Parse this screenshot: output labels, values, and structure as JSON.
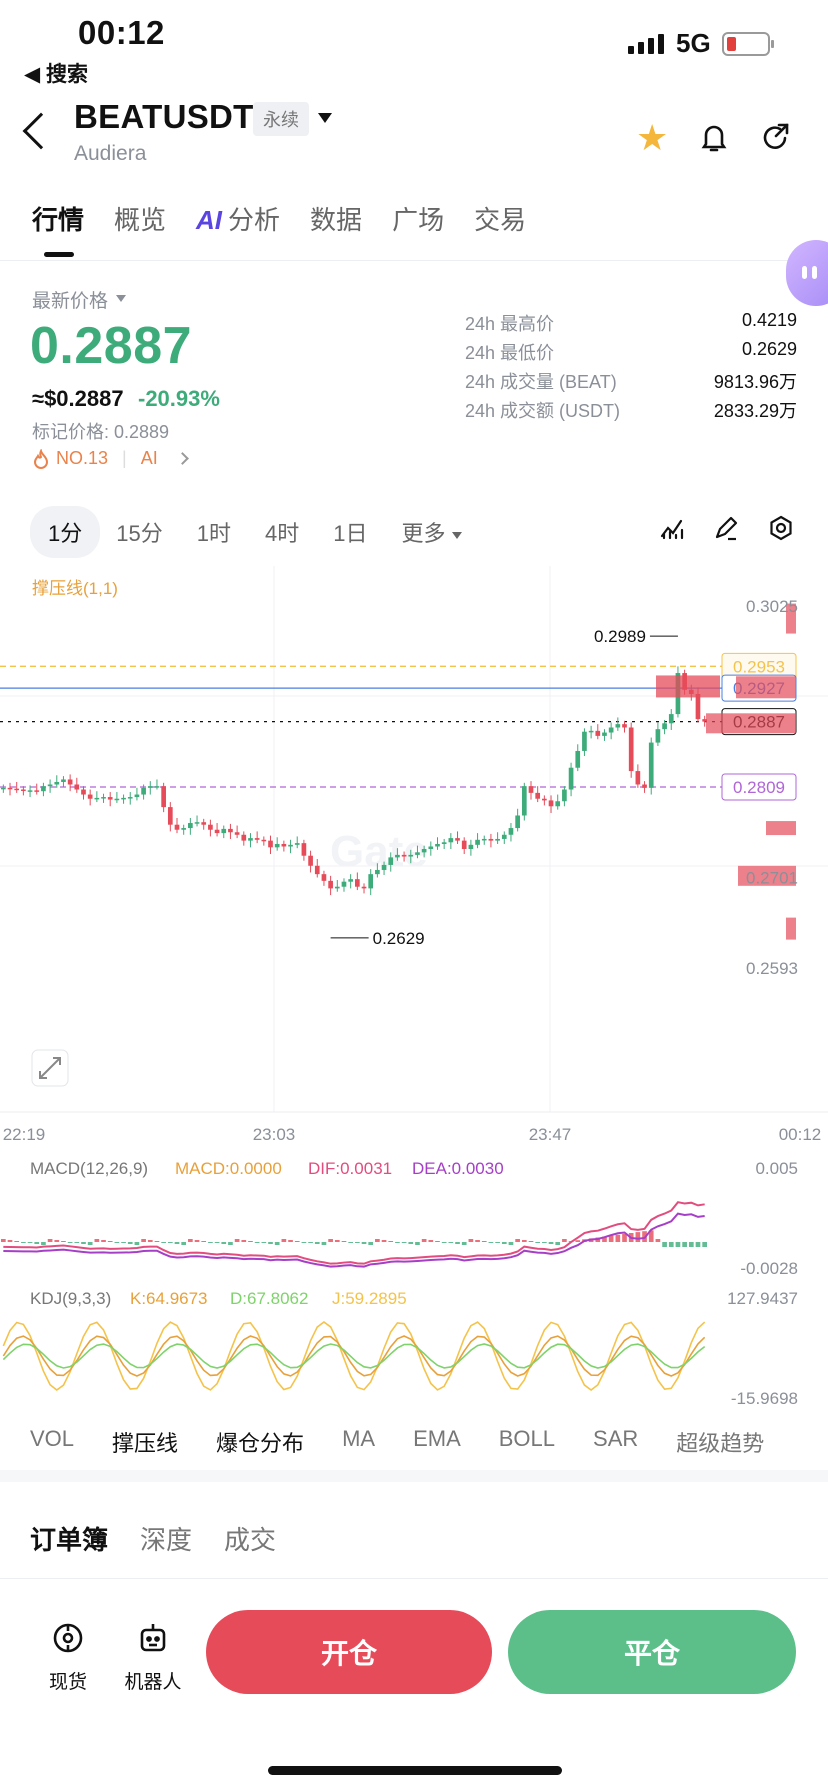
{
  "status_bar": {
    "time": "00:12",
    "back_label": "◀ 搜索",
    "network": "5G"
  },
  "header": {
    "symbol": "BEATUSDT",
    "contract_type": "永续",
    "name": "Audiera",
    "icons": [
      "star-icon",
      "bell-icon",
      "share-icon"
    ],
    "star_color": "#f4b63b"
  },
  "tabs": [
    {
      "label": "行情",
      "active": true
    },
    {
      "label": "概览"
    },
    {
      "label": "分析",
      "prefix": "AI"
    },
    {
      "label": "数据"
    },
    {
      "label": "广场"
    },
    {
      "label": "交易"
    }
  ],
  "price_block": {
    "latest_label": "最新价格",
    "price": "0.2887",
    "usd_price": "≈$0.2887",
    "change": "-20.93%",
    "mark_price": "标记价格: 0.2889",
    "rank": "NO.13",
    "ai_label": "AI",
    "up_color": "#3dab7a",
    "down_color": "#e64b5a"
  },
  "stats": [
    {
      "label": "24h 最高价",
      "value": "0.4219"
    },
    {
      "label": "24h 最低价",
      "value": "0.2629"
    },
    {
      "label": "24h 成交量 (BEAT)",
      "value": "9813.96万"
    },
    {
      "label": "24h 成交额 (USDT)",
      "value": "2833.29万"
    }
  ],
  "intervals": {
    "items": [
      "1分",
      "15分",
      "1时",
      "4时",
      "1日"
    ],
    "active": "1分",
    "more": "更多"
  },
  "chart_data": {
    "type": "candlestick",
    "indicator_label": "撑压线(1,1)",
    "watermark": "Gate",
    "ylim": [
      0.2593,
      0.3025
    ],
    "y_ticks": [
      "0.3025",
      "0.2701",
      "0.2593"
    ],
    "x_ticks": [
      "22:19",
      "23:03",
      "23:47",
      "00:12"
    ],
    "high_label": "0.2989",
    "low_label": "0.2629",
    "last_price": "0.2887",
    "resistance": "0.2953",
    "mark_line": "0.2927",
    "support": "0.2809",
    "closes": [
      0.2808,
      0.2807,
      0.2806,
      0.2805,
      0.2805,
      0.2804,
      0.281,
      0.2812,
      0.2815,
      0.2818,
      0.2812,
      0.2806,
      0.28,
      0.2795,
      0.2796,
      0.2797,
      0.2794,
      0.2795,
      0.2796,
      0.2797,
      0.28,
      0.2808,
      0.281,
      0.281,
      0.2785,
      0.2764,
      0.2758,
      0.276,
      0.2766,
      0.2767,
      0.2764,
      0.2758,
      0.2754,
      0.2759,
      0.2755,
      0.2752,
      0.2745,
      0.2748,
      0.2746,
      0.2745,
      0.2737,
      0.2741,
      0.2738,
      0.274,
      0.2742,
      0.2727,
      0.2715,
      0.2705,
      0.2697,
      0.2688,
      0.269,
      0.2696,
      0.2699,
      0.269,
      0.2688,
      0.2705,
      0.271,
      0.2716,
      0.2725,
      0.2728,
      0.2726,
      0.2728,
      0.2731,
      0.2735,
      0.2738,
      0.2741,
      0.2743,
      0.2748,
      0.2745,
      0.2735,
      0.274,
      0.2746,
      0.2747,
      0.2745,
      0.2747,
      0.2752,
      0.276,
      0.2775,
      0.281,
      0.2802,
      0.2795,
      0.2793,
      0.2786,
      0.2792,
      0.2806,
      0.2832,
      0.2852,
      0.2875,
      0.2876,
      0.287,
      0.2874,
      0.288,
      0.2884,
      0.288,
      0.2828,
      0.2812,
      0.2808,
      0.2862,
      0.2878,
      0.2885,
      0.2896,
      0.2945,
      0.2925,
      0.292,
      0.289,
      0.2887
    ],
    "macd": {
      "label": "MACD(12,26,9)",
      "macd": "MACD:0.0000",
      "dif": "DIF:0.0031",
      "dea": "DEA:0.0030",
      "ymax": "0.005",
      "ymin": "-0.0028"
    },
    "kdj": {
      "label": "KDJ(9,3,3)",
      "k": "K:64.9673",
      "d": "D:67.8062",
      "j": "J:59.2895",
      "ymax": "127.9437",
      "ymin": "-15.9698"
    },
    "colors": {
      "up": "#3dab7a",
      "down": "#e64b5a",
      "resistance": "#f4c34a",
      "mark": "#4a7fe0",
      "support": "#b066d6",
      "macd": "#e8a13a",
      "dif": "#e24c7f",
      "dea": "#a63fc7"
    }
  },
  "indicator_tabs": [
    "VOL",
    "撑压线",
    "爆仓分布",
    "MA",
    "EMA",
    "BOLL",
    "SAR",
    "超级趋势"
  ],
  "book_tabs": [
    "订单簿",
    "深度",
    "成交"
  ],
  "bottom_bar": {
    "spot": "现货",
    "bot": "机器人",
    "open": "开仓",
    "close": "平仓"
  }
}
